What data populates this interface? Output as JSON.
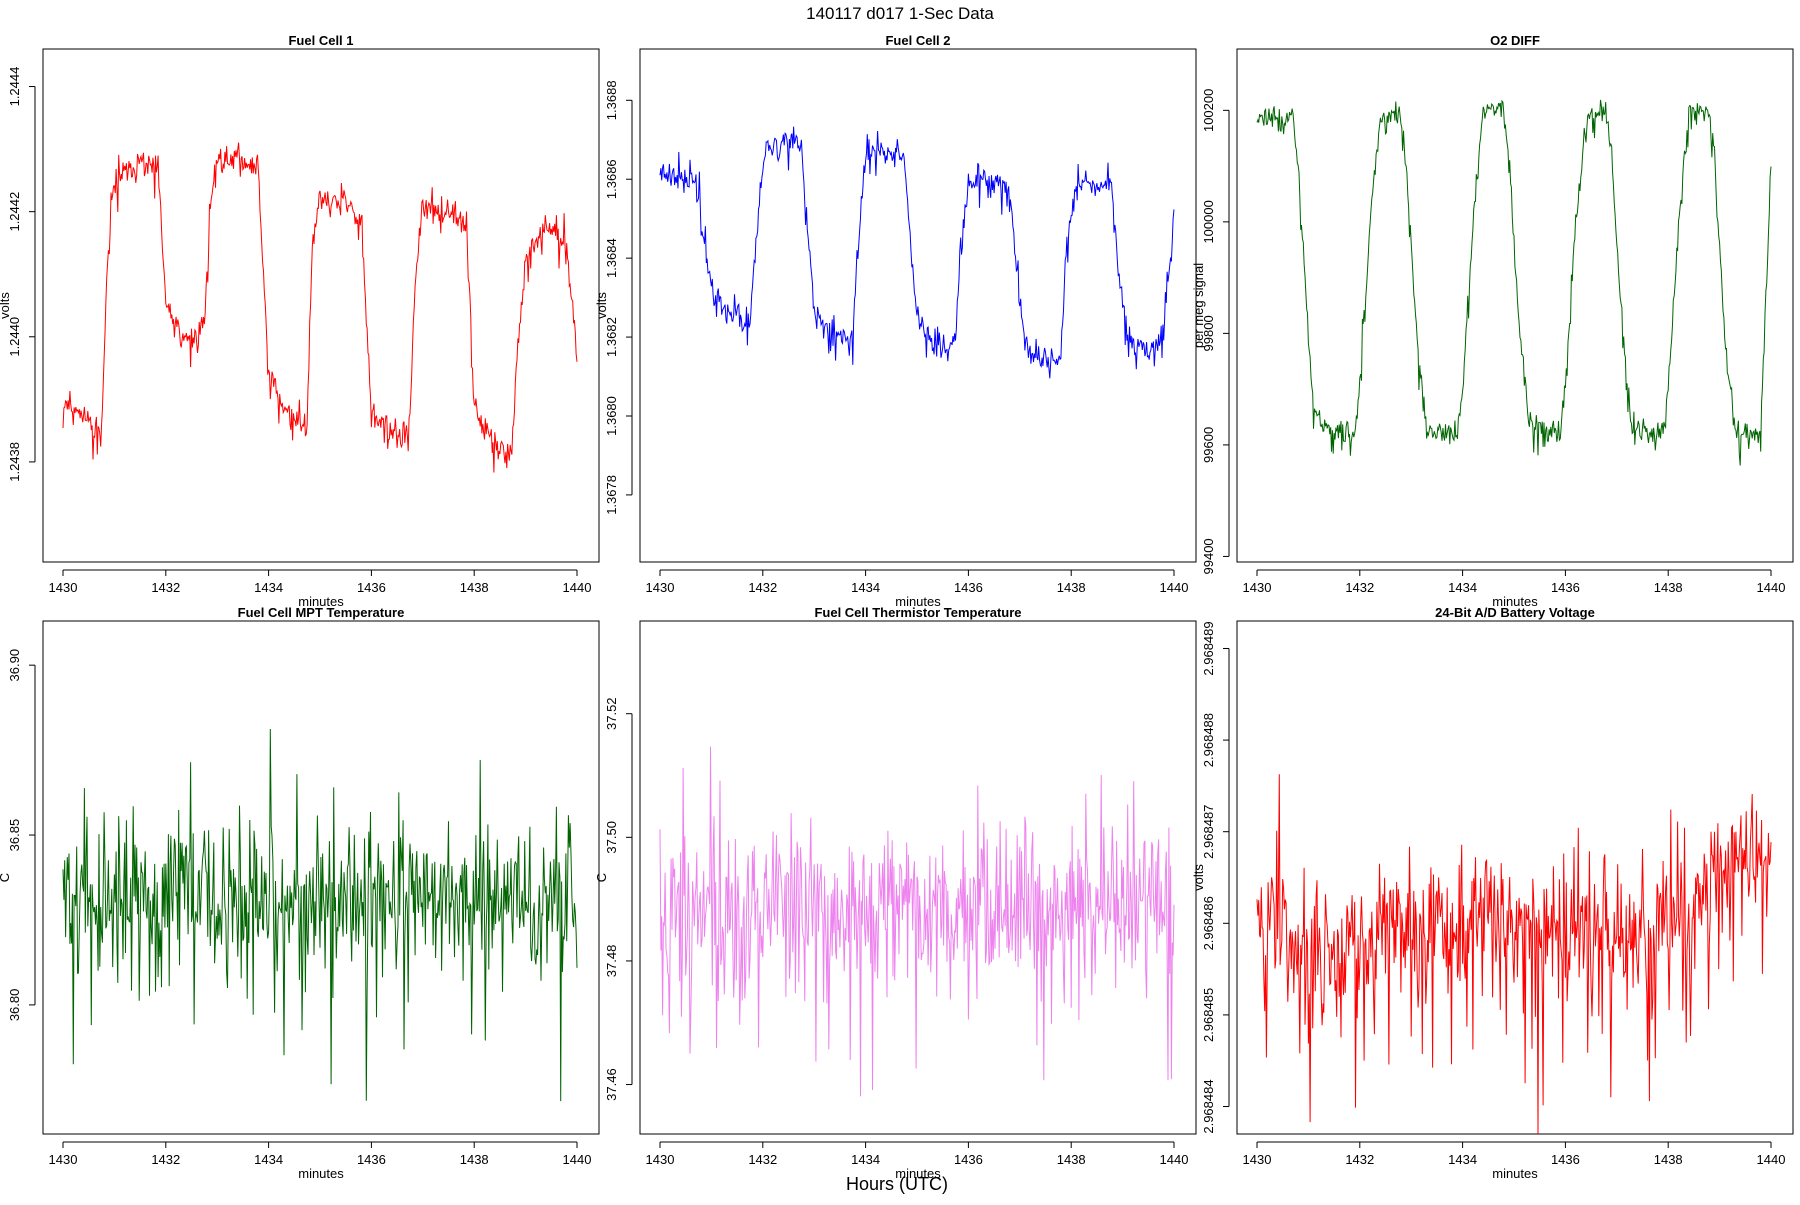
{
  "page_title": "140117   d017   1-Sec Data",
  "global_xlabel": "Hours (UTC)",
  "chart_data": [
    {
      "type": "line",
      "title": "Fuel Cell 1",
      "xlabel": "minutes",
      "ylabel": "volts",
      "color": "#ff0000",
      "xlim": [
        1430,
        1440
      ],
      "ylim": [
        1.24364,
        1.24446
      ],
      "xticks": [
        1430,
        1432,
        1434,
        1436,
        1438,
        1440
      ],
      "xtick_labels": [
        "1430",
        "1432",
        "1434",
        "1436",
        "1438",
        "1440"
      ],
      "yticks": [
        1.2438,
        1.244,
        1.2442,
        1.2444
      ],
      "ytick_labels": [
        "1.2438",
        "1.2440",
        "1.2442",
        "1.2444"
      ],
      "series": [
        {
          "name": "Fuel Cell 1",
          "x": [
            1430,
            1430.3,
            1430.6,
            1430.75,
            1430.85,
            1431,
            1431.5,
            1431.85,
            1432,
            1432.3,
            1432.6,
            1432.75,
            1432.85,
            1433,
            1433.4,
            1433.8,
            1434,
            1434.3,
            1434.6,
            1434.75,
            1434.85,
            1435,
            1435.4,
            1435.8,
            1436,
            1436.3,
            1436.6,
            1436.75,
            1436.85,
            1437,
            1437.5,
            1437.85,
            1438,
            1438.3,
            1438.7,
            1438.85,
            1439,
            1439.4,
            1439.8,
            1440
          ],
          "y": [
            1.2439,
            1.24388,
            1.24386,
            1.24384,
            1.2441,
            1.24425,
            1.24428,
            1.24427,
            1.24405,
            1.244,
            1.244,
            1.24402,
            1.2442,
            1.24428,
            1.24429,
            1.24426,
            1.24395,
            1.24388,
            1.24387,
            1.24386,
            1.24415,
            1.24422,
            1.24422,
            1.24419,
            1.24388,
            1.24385,
            1.24384,
            1.24386,
            1.2441,
            1.2442,
            1.2442,
            1.24418,
            1.24388,
            1.24384,
            1.2438,
            1.24398,
            1.24412,
            1.24418,
            1.24414,
            1.24398
          ]
        }
      ],
      "noise_amplitude": 3.8e-05,
      "seed": 11
    },
    {
      "type": "line",
      "title": "Fuel Cell 2",
      "xlabel": "minutes",
      "ylabel": "volts",
      "color": "#0000ff",
      "xlim": [
        1430,
        1440
      ],
      "ylim": [
        1.36763,
        1.36893
      ],
      "xticks": [
        1430,
        1432,
        1434,
        1436,
        1438,
        1440
      ],
      "xtick_labels": [
        "1430",
        "1432",
        "1434",
        "1436",
        "1438",
        "1440"
      ],
      "yticks": [
        1.3678,
        1.368,
        1.3682,
        1.3684,
        1.3686,
        1.3688
      ],
      "ytick_labels": [
        "1.3678",
        "1.3680",
        "1.3682",
        "1.3684",
        "1.3686",
        "1.3688"
      ],
      "series": [
        {
          "name": "Fuel Cell 2",
          "x": [
            1430,
            1430.4,
            1430.7,
            1430.85,
            1431,
            1431.4,
            1431.75,
            1431.85,
            1432,
            1432.4,
            1432.75,
            1432.85,
            1433,
            1433.4,
            1433.75,
            1433.85,
            1434,
            1434.4,
            1434.75,
            1434.85,
            1435,
            1435.4,
            1435.75,
            1435.85,
            1436,
            1436.5,
            1436.8,
            1436.9,
            1437.1,
            1437.5,
            1437.8,
            1437.9,
            1438.1,
            1438.5,
            1438.8,
            1438.9,
            1439.1,
            1439.5,
            1439.8,
            1440
          ],
          "y": [
            1.36862,
            1.3686,
            1.36862,
            1.36845,
            1.36832,
            1.36826,
            1.36824,
            1.3684,
            1.36866,
            1.3687,
            1.36868,
            1.3685,
            1.36826,
            1.3682,
            1.3682,
            1.36845,
            1.36866,
            1.36868,
            1.36866,
            1.36848,
            1.36824,
            1.36818,
            1.36818,
            1.36845,
            1.3686,
            1.3686,
            1.36858,
            1.36842,
            1.36818,
            1.36814,
            1.36814,
            1.36842,
            1.3686,
            1.3686,
            1.36858,
            1.3684,
            1.3682,
            1.36816,
            1.3682,
            1.36852
          ]
        }
      ],
      "noise_amplitude": 5.5e-05,
      "seed": 23
    },
    {
      "type": "line",
      "title": "O2 DIFF",
      "xlabel": "minutes",
      "ylabel": "per meg signal",
      "color": "#006400",
      "xlim": [
        1430,
        1440
      ],
      "ylim": [
        99390,
        100310
      ],
      "xticks": [
        1430,
        1432,
        1434,
        1436,
        1438,
        1440
      ],
      "xtick_labels": [
        "1430",
        "1432",
        "1434",
        "1436",
        "1438",
        "1440"
      ],
      "yticks": [
        99400,
        99600,
        99800,
        100000,
        100200
      ],
      "ytick_labels": [
        "99400",
        "99600",
        "99800",
        "100000",
        "100200"
      ],
      "series": [
        {
          "name": "O2 DIFF",
          "x": [
            1430,
            1430.7,
            1430.8,
            1431.0,
            1431.1,
            1431.3,
            1431.9,
            1432.0,
            1432.2,
            1432.4,
            1432.8,
            1432.9,
            1433.1,
            1433.3,
            1433.9,
            1434.0,
            1434.2,
            1434.4,
            1434.8,
            1434.9,
            1435.1,
            1435.3,
            1435.9,
            1436.0,
            1436.2,
            1436.4,
            1436.8,
            1436.9,
            1437.1,
            1437.3,
            1437.9,
            1438.0,
            1438.2,
            1438.4,
            1438.8,
            1438.9,
            1439.1,
            1439.3,
            1439.8,
            1440
          ],
          "y": [
            100190,
            100185,
            100100,
            99800,
            99660,
            99630,
            99625,
            99700,
            100000,
            100190,
            100190,
            100100,
            99800,
            99630,
            99620,
            99700,
            100000,
            100210,
            100210,
            100120,
            99810,
            99640,
            99620,
            99700,
            100000,
            100190,
            100200,
            100120,
            99820,
            99625,
            99620,
            99700,
            99990,
            100195,
            100200,
            100110,
            99800,
            99625,
            99620,
            100100
          ]
        }
      ],
      "noise_amplitude": 38,
      "seed": 37
    },
    {
      "type": "line",
      "title": "Fuel Cell MPT Temperature",
      "xlabel": "minutes",
      "ylabel": "C",
      "color": "#006400",
      "xlim": [
        1430,
        1440
      ],
      "ylim": [
        36.762,
        36.913
      ],
      "xticks": [
        1430,
        1432,
        1434,
        1436,
        1438,
        1440
      ],
      "xtick_labels": [
        "1430",
        "1432",
        "1434",
        "1436",
        "1438",
        "1440"
      ],
      "yticks": [
        36.8,
        36.85,
        36.9
      ],
      "ytick_labels": [
        "36.80",
        "36.85",
        "36.90"
      ],
      "series": [
        {
          "name": "Fuel Cell MPT Temperature",
          "x": [
            1430,
            1440
          ],
          "y": [
            36.832,
            36.832
          ]
        }
      ],
      "noise_amplitude": 0.036,
      "seed": 51
    },
    {
      "type": "line",
      "title": "Fuel Cell Thermistor Temperature",
      "xlabel": "minutes",
      "ylabel": "C",
      "color": "#ee82ee",
      "xlim": [
        1430,
        1440
      ],
      "ylim": [
        37.452,
        37.535
      ],
      "xticks": [
        1430,
        1432,
        1434,
        1436,
        1438,
        1440
      ],
      "xtick_labels": [
        "1430",
        "1432",
        "1434",
        "1436",
        "1438",
        "1440"
      ],
      "yticks": [
        37.46,
        37.48,
        37.5,
        37.52
      ],
      "ytick_labels": [
        "37.46",
        "37.48",
        "37.50",
        "37.52"
      ],
      "series": [
        {
          "name": "Fuel Cell Thermistor Temperature",
          "x": [
            1430,
            1440
          ],
          "y": [
            37.489,
            37.489
          ]
        }
      ],
      "noise_amplitude": 0.02,
      "seed": 67
    },
    {
      "type": "line",
      "title": "24-Bit A/D Battery Voltage",
      "xlabel": "minutes",
      "ylabel": "volts",
      "color": "#ff0000",
      "xlim": [
        1430,
        1440
      ],
      "ylim": [
        2.9684837,
        2.9684893
      ],
      "xticks": [
        1430,
        1432,
        1434,
        1436,
        1438,
        1440
      ],
      "xtick_labels": [
        "1430",
        "1432",
        "1434",
        "1436",
        "1438",
        "1440"
      ],
      "yticks": [
        2.968484,
        2.968485,
        2.968486,
        2.968487,
        2.968488,
        2.968489
      ],
      "ytick_labels": [
        "2.968484",
        "2.968485",
        "2.968486",
        "2.968487",
        "2.968488",
        "2.968489"
      ],
      "series": [
        {
          "name": "24-Bit A/D Battery Voltage",
          "x": [
            1430,
            1431.5,
            1433,
            1434.5,
            1436,
            1437.5,
            1438.5,
            1439.2,
            1440
          ],
          "y": [
            2.9684861,
            2.9684857,
            2.968486,
            2.968486,
            2.9684859,
            2.9684858,
            2.9684862,
            2.9684866,
            2.9684869
          ]
        }
      ],
      "noise_amplitude": 1.3e-06,
      "seed": 83
    }
  ]
}
